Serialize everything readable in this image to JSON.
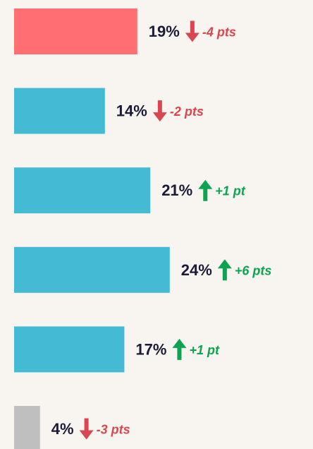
{
  "chart_data": {
    "type": "bar",
    "orientation": "horizontal",
    "values": [
      19,
      14,
      21,
      24,
      17,
      4
    ],
    "value_labels": [
      "19%",
      "14%",
      "21%",
      "24%",
      "17%",
      "4%"
    ],
    "colors": [
      "#ff6f71",
      "#45bad5",
      "#45bad5",
      "#45bad5",
      "#45bad5",
      "#bfbfbf"
    ],
    "changes": [
      -4,
      -2,
      1,
      6,
      1,
      -3
    ],
    "change_labels": [
      "-4 pts",
      "-2 pts",
      "+1 pt",
      "+6 pts",
      "+1 pt",
      "-3 pts"
    ],
    "up_color": "#0ca450",
    "down_color": "#d9464f"
  }
}
